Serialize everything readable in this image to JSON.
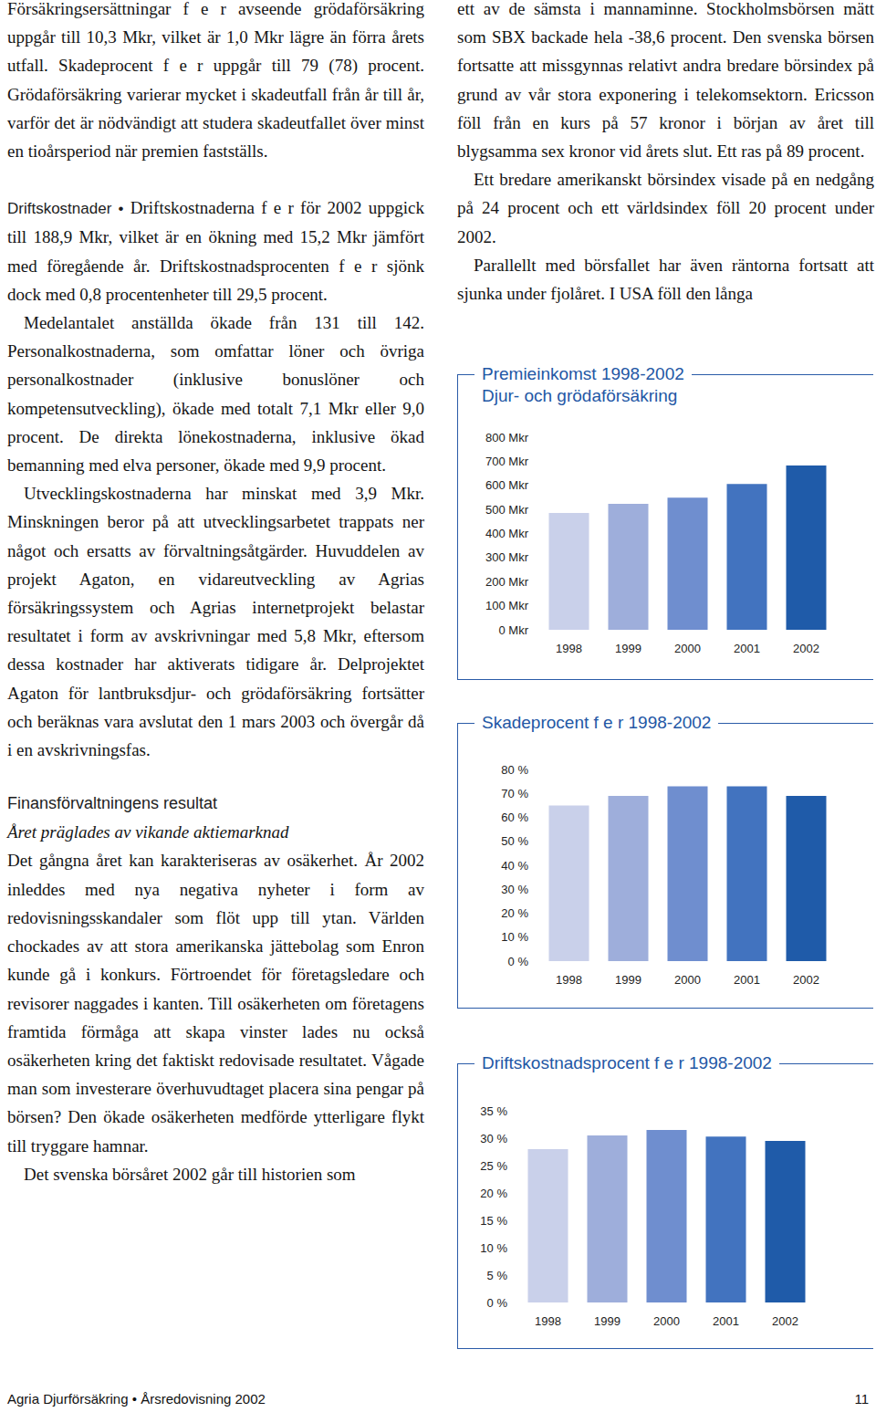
{
  "document": {
    "left_column": [
      {
        "kind": "p",
        "text": "Försäkringsersättningar f e r avseende grödaförsäkring uppgår till 10,3 Mkr, vilket är 1,0 Mkr lägre än förra årets utfall. Skadeprocent f e r uppgår till 79 (78) procent. Grödaförsäkring varierar mycket i skadeutfall från år till år, varför det är nödvändigt att studera skadeutfallet över minst en tioårsperiod när premien fastställs."
      },
      {
        "kind": "run_in",
        "heading": "Driftskostnader •",
        "text": "Driftskostnaderna f e r för 2002 uppgick till 188,9 Mkr, vilket är en ökning med 15,2 Mkr jämfört med föregående år. Driftskostnadsprocenten f e r sjönk dock med 0,8 procentenheter till 29,5 procent."
      },
      {
        "kind": "p",
        "indent": true,
        "text": "Medelantalet anställda ökade från 131 till 142. Personalkostnaderna, som omfattar löner och övriga personalkostnader (inklusive bonuslöner och kompetensutveckling), ökade med totalt 7,1 Mkr eller 9,0 procent. De direkta lönekostnaderna, inklusive ökad bemanning med elva personer, ökade med 9,9 procent."
      },
      {
        "kind": "p",
        "indent": true,
        "text": "Utvecklingskostnaderna har minskat med 3,9 Mkr. Minskningen beror på att utvecklingsarbetet trappats ner något och ersatts av förvaltningsåtgärder. Huvuddelen av projekt Agaton, en vidareutveckling av Agrias försäkringssystem och Agrias internetprojekt belastar resultatet i form av avskrivningar med 5,8 Mkr, eftersom dessa kostnader har aktiverats tidigare år. Delprojektet Agaton för lantbruksdjur- och grödaförsäkring fortsätter och beräknas vara avslutat den 1 mars 2003 och övergår då i en avskrivningsfas."
      },
      {
        "kind": "heading",
        "text": "Finansförvaltningens resultat"
      },
      {
        "kind": "subheading",
        "text": "Året präglades av vikande aktiemarknad"
      },
      {
        "kind": "p",
        "text": "Det gångna året kan karakteriseras av osäkerhet. År 2002 inleddes med nya negativa nyheter i form av redovisningsskandaler som flöt upp till ytan. Världen chockades av att stora amerikanska jättebolag som Enron kunde gå i konkurs. Förtroendet för företagsledare och revisorer naggades i kanten. Till osäkerheten om företagens framtida förmåga att skapa vinster lades nu också osäkerheten kring det faktiskt redovisade resultatet. Vågade man som investerare överhuvudtaget placera sina pengar på börsen? Den ökade osäkerheten medförde ytterligare flykt till tryggare hamnar."
      },
      {
        "kind": "p",
        "indent": true,
        "text": "Det svenska börsåret 2002 går till historien som"
      }
    ],
    "right_column": [
      {
        "kind": "p",
        "text": "ett av de sämsta i mannaminne. Stockholmsbörsen mätt som SBX backade hela -38,6 procent. Den svenska börsen fortsatte att missgynnas relativt andra bredare börsindex på grund av vår stora exponering i telekomsektorn. Ericsson föll från en kurs på 57 kronor i början av året till blygsamma sex kronor vid årets slut. Ett ras på 89 procent."
      },
      {
        "kind": "p",
        "indent": true,
        "text": "Ett bredare amerikanskt börsindex visade på en nedgång på 24 procent och ett världsindex föll 20 procent under 2002."
      },
      {
        "kind": "p",
        "indent": true,
        "text": "Parallellt med börsfallet har även räntorna fortsatt att sjunka under fjolåret. I USA föll den långa"
      }
    ],
    "footer": {
      "left": "Agria Djurförsäkring • Årsredovisning 2002",
      "page_number": "11"
    }
  },
  "chart_data": [
    {
      "type": "bar",
      "title": "Premieinkomst 1998-2002",
      "subtitle": "Djur- och grödaförsäkring",
      "categories": [
        "1998",
        "1999",
        "2000",
        "2001",
        "2002"
      ],
      "values": [
        485,
        523,
        549,
        606,
        682
      ],
      "colors": [
        "#c9d0ea",
        "#9eaedb",
        "#6f8ecf",
        "#4273bf",
        "#1f5ba9"
      ],
      "ylim": [
        0,
        800
      ],
      "yticks": [
        {
          "value": 0,
          "label": "0 Mkr"
        },
        {
          "value": 100,
          "label": "100 Mkr"
        },
        {
          "value": 200,
          "label": "200 Mkr"
        },
        {
          "value": 300,
          "label": "300 Mkr"
        },
        {
          "value": 400,
          "label": "400 Mkr"
        },
        {
          "value": 500,
          "label": "500 Mkr"
        },
        {
          "value": 600,
          "label": "600 Mkr"
        },
        {
          "value": 700,
          "label": "700 Mkr"
        },
        {
          "value": 800,
          "label": "800 Mkr"
        }
      ],
      "grid": false
    },
    {
      "type": "bar",
      "title": "Skadeprocent f e r 1998-2002",
      "categories": [
        "1998",
        "1999",
        "2000",
        "2001",
        "2002"
      ],
      "values": [
        65,
        69,
        73,
        73,
        69
      ],
      "colors": [
        "#c9d0ea",
        "#9eaedb",
        "#6f8ecf",
        "#4273bf",
        "#1f5ba9"
      ],
      "ylim": [
        0,
        80
      ],
      "yticks": [
        {
          "value": 0,
          "label": "0 %"
        },
        {
          "value": 10,
          "label": "10 %"
        },
        {
          "value": 20,
          "label": "20 %"
        },
        {
          "value": 30,
          "label": "30 %"
        },
        {
          "value": 40,
          "label": "40 %"
        },
        {
          "value": 50,
          "label": "50 %"
        },
        {
          "value": 60,
          "label": "60 %"
        },
        {
          "value": 70,
          "label": "70 %"
        },
        {
          "value": 80,
          "label": "80 %"
        }
      ],
      "grid": false
    },
    {
      "type": "bar",
      "title": "Driftskostnadsprocent f e r 1998-2002",
      "categories": [
        "1998",
        "1999",
        "2000",
        "2001",
        "2002"
      ],
      "values": [
        28,
        30.5,
        31.5,
        30.3,
        29.5
      ],
      "colors": [
        "#c9d0ea",
        "#9eaedb",
        "#6f8ecf",
        "#4273bf",
        "#1f5ba9"
      ],
      "ylim": [
        0,
        35
      ],
      "yticks": [
        {
          "value": 0,
          "label": "0 %"
        },
        {
          "value": 5,
          "label": "5 %"
        },
        {
          "value": 10,
          "label": "10 %"
        },
        {
          "value": 15,
          "label": "15 %"
        },
        {
          "value": 20,
          "label": "20 %"
        },
        {
          "value": 25,
          "label": "25 %"
        },
        {
          "value": 30,
          "label": "30 %"
        },
        {
          "value": 35,
          "label": "35 %"
        }
      ],
      "grid": false
    }
  ]
}
